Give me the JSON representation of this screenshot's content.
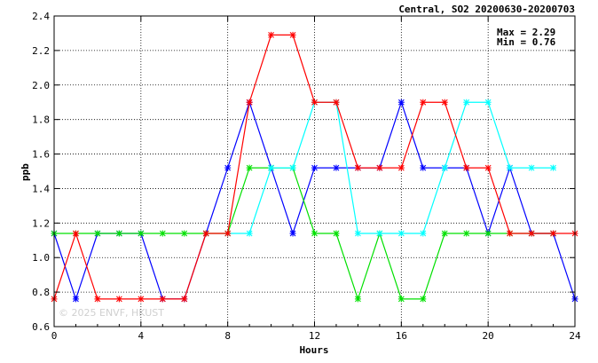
{
  "chart_data": {
    "type": "line",
    "title": "Central, SO2 20200630-20200703",
    "xlabel": "Hours",
    "ylabel": "ppb",
    "xlim": [
      0,
      24
    ],
    "ylim": [
      0.6,
      2.4
    ],
    "x_ticks": [
      0,
      4,
      8,
      12,
      16,
      20,
      24
    ],
    "y_ticks": [
      0.6,
      0.8,
      1.0,
      1.2,
      1.4,
      1.6,
      1.8,
      2.0,
      2.2,
      2.4
    ],
    "grid": true,
    "stats": {
      "max_label": "Max = 2.29",
      "min_label": "Min = 0.76"
    },
    "watermark": "© 2025 ENVF, HKUST",
    "x": [
      0,
      1,
      2,
      3,
      4,
      5,
      6,
      7,
      8,
      9,
      10,
      11,
      12,
      13,
      14,
      15,
      16,
      17,
      18,
      19,
      20,
      21,
      22,
      23,
      24
    ],
    "series": [
      {
        "color": "#0000ff",
        "values": [
          1.14,
          0.76,
          1.14,
          1.14,
          1.14,
          0.76,
          0.76,
          1.14,
          1.52,
          1.9,
          1.52,
          1.14,
          1.52,
          1.52,
          1.52,
          1.52,
          1.9,
          1.52,
          1.52,
          1.52,
          1.14,
          1.52,
          1.14,
          1.14,
          0.76
        ]
      },
      {
        "color": "#00e000",
        "values": [
          1.14,
          1.14,
          1.14,
          1.14,
          1.14,
          1.14,
          1.14,
          1.14,
          1.14,
          1.52,
          1.52,
          1.52,
          1.14,
          1.14,
          0.76,
          1.14,
          0.76,
          0.76,
          1.14,
          1.14,
          1.14,
          1.14,
          1.14,
          1.14,
          null
        ]
      },
      {
        "color": "#00ffff",
        "values": [
          null,
          null,
          null,
          null,
          null,
          null,
          null,
          null,
          1.14,
          1.14,
          1.52,
          1.52,
          1.9,
          1.9,
          1.14,
          1.14,
          1.14,
          1.14,
          1.52,
          1.9,
          1.9,
          1.52,
          1.52,
          1.52,
          null
        ]
      },
      {
        "color": "#ff0000",
        "values": [
          0.76,
          1.14,
          0.76,
          0.76,
          0.76,
          0.76,
          0.76,
          1.14,
          1.14,
          1.9,
          2.29,
          2.29,
          1.9,
          1.9,
          1.52,
          1.52,
          1.52,
          1.9,
          1.9,
          1.52,
          1.52,
          1.14,
          1.14,
          1.14,
          1.14
        ]
      }
    ]
  }
}
